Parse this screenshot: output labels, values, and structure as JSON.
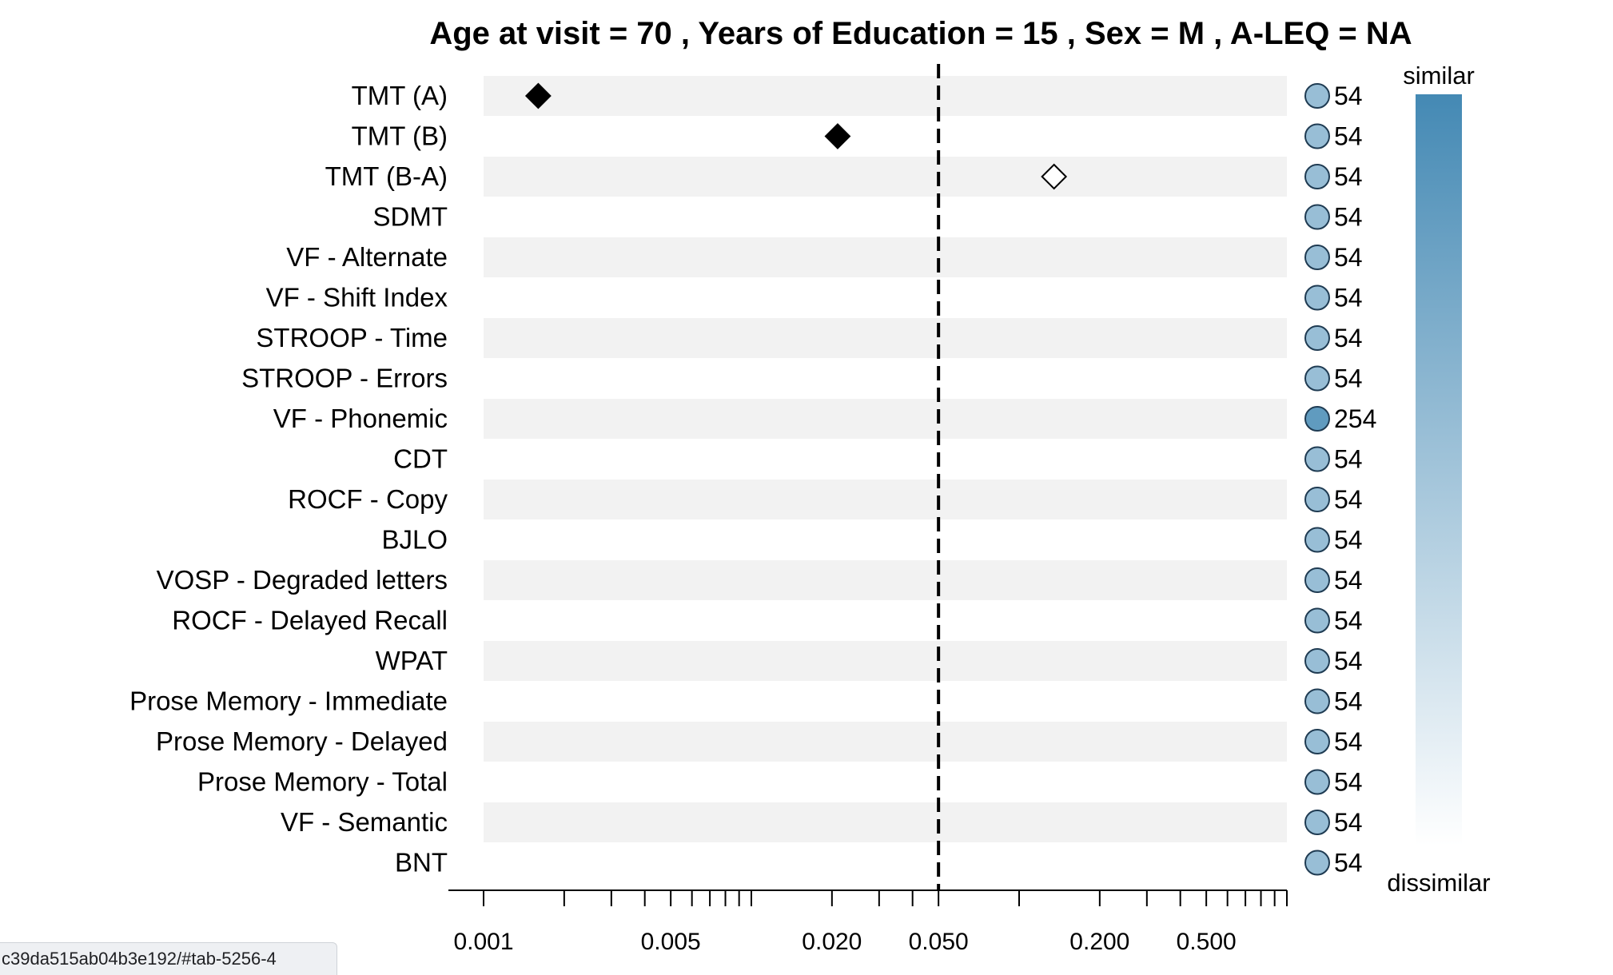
{
  "status_bar": {
    "url": "c39da515ab04b3e192/#tab-5256-4"
  },
  "chart_data": {
    "type": "scatter",
    "title": "Age at visit = 70 , Years of Education = 15 , Sex = M , A-LEQ = NA",
    "x_scale": "log",
    "xlim": [
      0.001,
      1
    ],
    "x_ticks": [
      0.001,
      0.002,
      0.003,
      0.004,
      0.005,
      0.006,
      0.007,
      0.008,
      0.009,
      0.01,
      0.02,
      0.03,
      0.04,
      0.05,
      0.1,
      0.2,
      0.3,
      0.4,
      0.5,
      0.6,
      0.7,
      0.8,
      0.9,
      1
    ],
    "x_tick_labels": [
      {
        "value": 0.001,
        "label": "0.001"
      },
      {
        "value": 0.005,
        "label": "0.005"
      },
      {
        "value": 0.02,
        "label": "0.020"
      },
      {
        "value": 0.05,
        "label": "0.050"
      },
      {
        "value": 0.2,
        "label": "0.200"
      },
      {
        "value": 0.5,
        "label": "0.500"
      }
    ],
    "reference_line": 0.05,
    "rows": [
      {
        "label": "TMT (A)",
        "value": 0.0016,
        "filled": true,
        "count": "54",
        "similarity": 0.55
      },
      {
        "label": "TMT (B)",
        "value": 0.021,
        "filled": true,
        "count": "54",
        "similarity": 0.55
      },
      {
        "label": "TMT (B-A)",
        "value": 0.135,
        "filled": false,
        "count": "54",
        "similarity": 0.55
      },
      {
        "label": "SDMT",
        "value": null,
        "count": "54",
        "similarity": 0.55
      },
      {
        "label": "VF - Alternate",
        "value": null,
        "count": "54",
        "similarity": 0.55
      },
      {
        "label": "VF - Shift Index",
        "value": null,
        "count": "54",
        "similarity": 0.55
      },
      {
        "label": "STROOP - Time",
        "value": null,
        "count": "54",
        "similarity": 0.55
      },
      {
        "label": "STROOP - Errors",
        "value": null,
        "count": "54",
        "similarity": 0.55
      },
      {
        "label": "VF - Phonemic",
        "value": null,
        "count": "254",
        "similarity": 0.85
      },
      {
        "label": "CDT",
        "value": null,
        "count": "54",
        "similarity": 0.55
      },
      {
        "label": "ROCF - Copy",
        "value": null,
        "count": "54",
        "similarity": 0.55
      },
      {
        "label": "BJLO",
        "value": null,
        "count": "54",
        "similarity": 0.55
      },
      {
        "label": "VOSP - Degraded letters",
        "value": null,
        "count": "54",
        "similarity": 0.55
      },
      {
        "label": "ROCF - Delayed Recall",
        "value": null,
        "count": "54",
        "similarity": 0.55
      },
      {
        "label": "WPAT",
        "value": null,
        "count": "54",
        "similarity": 0.55
      },
      {
        "label": "Prose Memory - Immediate",
        "value": null,
        "count": "54",
        "similarity": 0.55
      },
      {
        "label": "Prose Memory - Delayed",
        "value": null,
        "count": "54",
        "similarity": 0.55
      },
      {
        "label": "Prose Memory - Total ",
        "value": null,
        "count": "54",
        "similarity": 0.55
      },
      {
        "label": "VF - Semantic",
        "value": null,
        "count": "54",
        "similarity": 0.55
      },
      {
        "label": "BNT",
        "value": null,
        "count": "54",
        "similarity": 0.55
      }
    ],
    "legend": {
      "top_label": "similar",
      "bottom_label": "dissimilar",
      "color_similar": "#4489b4",
      "color_dissimilar": "#ffffff",
      "placement": "right"
    },
    "colors": {
      "band": "#f2f2f2",
      "circle_stroke": "#1f3b52",
      "marker": "#000000"
    }
  }
}
